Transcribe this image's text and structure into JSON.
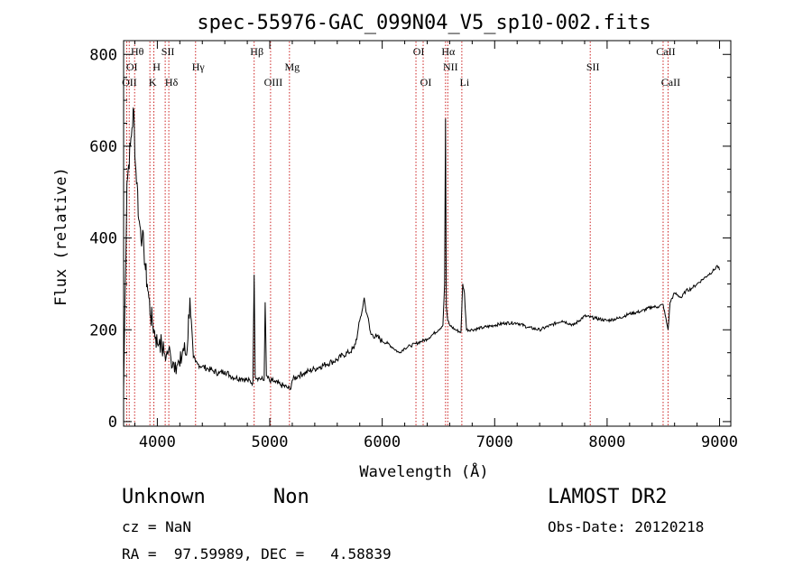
{
  "chart_data": {
    "type": "line",
    "title": "spec-55976-GAC_099N04_V5_sp10-002.fits",
    "xlabel": "Wavelength (Å)",
    "ylabel": "Flux (relative)",
    "xlim": [
      3700,
      9100
    ],
    "ylim": [
      -10,
      830
    ],
    "xticks": [
      4000,
      5000,
      6000,
      7000,
      8000,
      9000
    ],
    "yticks": [
      0,
      200,
      400,
      600,
      800
    ],
    "series": [
      {
        "x": [
          3700,
          3715,
          3730,
          3745,
          3760,
          3775,
          3790,
          3805,
          3820,
          3835,
          3850,
          3865,
          3880,
          3895,
          3910,
          3925,
          3940,
          3955,
          3970,
          3985,
          4000,
          4020,
          4040,
          4060,
          4080,
          4100,
          4120,
          4140,
          4160,
          4180,
          4200,
          4230,
          4260,
          4290,
          4320,
          4340,
          4360,
          4400,
          4450,
          4500,
          4550,
          4600,
          4650,
          4700,
          4750,
          4800,
          4850,
          4861,
          4870,
          4900,
          4950,
          4959,
          4970,
          5007,
          5020,
          5050,
          5100,
          5150,
          5180,
          5200,
          5250,
          5300,
          5350,
          5400,
          5450,
          5500,
          5550,
          5600,
          5650,
          5700,
          5750,
          5780,
          5800,
          5820,
          5840,
          5850,
          5870,
          5890,
          5900,
          5950,
          6000,
          6050,
          6100,
          6150,
          6200,
          6250,
          6300,
          6350,
          6400,
          6450,
          6500,
          6540,
          6555,
          6563,
          6570,
          6583,
          6600,
          6650,
          6700,
          6716,
          6731,
          6750,
          6800,
          6900,
          7000,
          7100,
          7200,
          7300,
          7400,
          7500,
          7600,
          7700,
          7800,
          7900,
          8000,
          8100,
          8200,
          8300,
          8400,
          8450,
          8498,
          8542,
          8560,
          8600,
          8662,
          8700,
          8750,
          8800,
          8850,
          8900,
          8950,
          8980,
          9000
        ],
        "y": [
          70,
          300,
          520,
          560,
          600,
          640,
          680,
          560,
          520,
          440,
          420,
          400,
          380,
          330,
          300,
          270,
          230,
          220,
          200,
          185,
          170,
          180,
          160,
          150,
          145,
          155,
          140,
          130,
          130,
          125,
          120,
          160,
          145,
          270,
          140,
          130,
          125,
          120,
          115,
          110,
          105,
          110,
          100,
          95,
          95,
          90,
          85,
          320,
          100,
          95,
          90,
          260,
          100,
          85,
          90,
          85,
          80,
          75,
          70,
          90,
          100,
          105,
          110,
          115,
          120,
          125,
          130,
          135,
          145,
          150,
          160,
          190,
          220,
          240,
          270,
          250,
          230,
          200,
          190,
          185,
          175,
          170,
          160,
          150,
          160,
          165,
          170,
          175,
          180,
          190,
          200,
          210,
          300,
          660,
          250,
          220,
          210,
          200,
          195,
          300,
          280,
          200,
          200,
          205,
          210,
          215,
          215,
          205,
          200,
          210,
          220,
          210,
          230,
          225,
          220,
          225,
          235,
          240,
          250,
          250,
          255,
          200,
          260,
          280,
          270,
          285,
          290,
          300,
          310,
          320,
          330,
          340,
          330
        ]
      }
    ],
    "lines": [
      {
        "label": "Hθ",
        "x": 3798,
        "row": 1
      },
      {
        "label": "OI",
        "x": 3750,
        "row": 2
      },
      {
        "label": "OII",
        "x": 3728,
        "row": 3
      },
      {
        "label": "H",
        "x": 3969,
        "row": 2
      },
      {
        "label": "K",
        "x": 3934,
        "row": 3
      },
      {
        "label": "SII",
        "x": 4070,
        "row": 1
      },
      {
        "label": "Hδ",
        "x": 4102,
        "row": 3
      },
      {
        "label": "Hγ",
        "x": 4340,
        "row": 2
      },
      {
        "label": "Hβ",
        "x": 4861,
        "row": 1
      },
      {
        "label": "Mg",
        "x": 5175,
        "row": 2
      },
      {
        "label": "OIII",
        "x": 5007,
        "row": 3
      },
      {
        "label": "OI",
        "x": 6300,
        "row": 1
      },
      {
        "label": "OI",
        "x": 6364,
        "row": 3
      },
      {
        "label": "Hα",
        "x": 6563,
        "row": 1
      },
      {
        "label": "NII",
        "x": 6583,
        "row": 2
      },
      {
        "label": "Li",
        "x": 6708,
        "row": 3
      },
      {
        "label": "SII",
        "x": 7850,
        "row": 2
      },
      {
        "label": "CaII",
        "x": 8498,
        "row": 1
      },
      {
        "label": "CaII",
        "x": 8542,
        "row": 3
      }
    ],
    "grid": false
  },
  "info": {
    "classification": "Unknown",
    "subclass": "Non",
    "survey": "LAMOST DR2",
    "cz": "cz = NaN",
    "obs_date": "Obs-Date: 20120218",
    "coords": "RA =  97.59989, DEC =   4.58839"
  }
}
